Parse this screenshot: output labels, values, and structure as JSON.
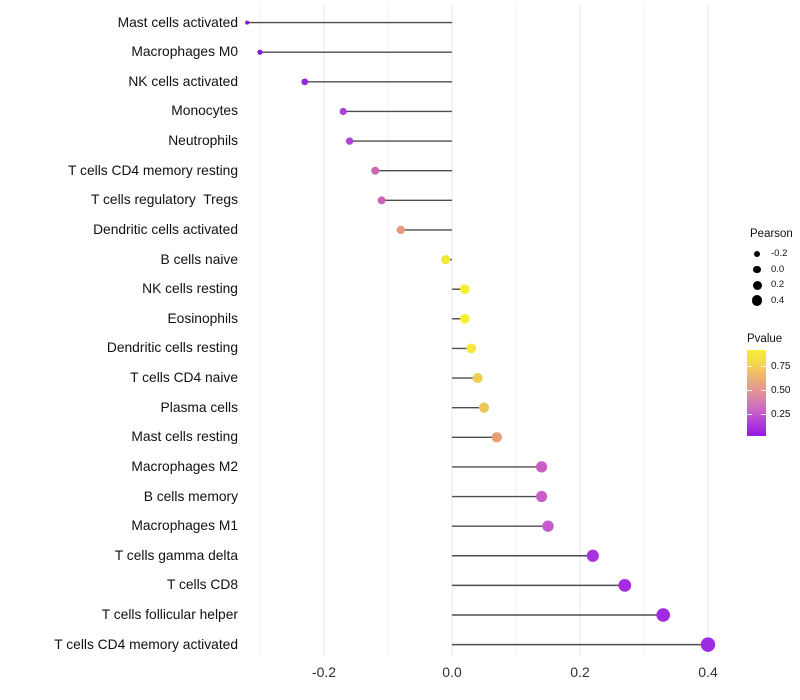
{
  "chart_data": {
    "type": "lollipop",
    "title": "",
    "xlabel": "",
    "ylabel": "",
    "xlim": [
      -0.345,
      0.44
    ],
    "x_ticks": [
      -0.2,
      0.0,
      0.2,
      0.4
    ],
    "x_tick_labels": [
      "-0.2",
      "0.0",
      "0.2",
      "0.4"
    ],
    "gridlines_x": [
      -0.3,
      -0.2,
      -0.1,
      0.0,
      0.1,
      0.2,
      0.3,
      0.4
    ],
    "grid": "vertical-only",
    "legend_position": "right",
    "rows": [
      {
        "label": "Mast cells activated",
        "pearson": -0.32,
        "pvalue_est": 0.02,
        "color": "#7E14D8",
        "radius": 2.0
      },
      {
        "label": "Macrophages M0",
        "pearson": -0.3,
        "pvalue_est": 0.04,
        "color": "#8819DB",
        "radius": 2.6
      },
      {
        "label": "NK cells activated",
        "pearson": -0.23,
        "pvalue_est": 0.07,
        "color": "#9329E0",
        "radius": 3.4
      },
      {
        "label": "Monocytes",
        "pearson": -0.17,
        "pvalue_est": 0.14,
        "color": "#AE41D5",
        "radius": 3.6
      },
      {
        "label": "Neutrophils",
        "pearson": -0.16,
        "pvalue_est": 0.15,
        "color": "#B044D3",
        "radius": 3.7
      },
      {
        "label": "T cells CD4 memory resting",
        "pearson": -0.12,
        "pvalue_est": 0.31,
        "color": "#CA68B5",
        "radius": 4.0
      },
      {
        "label": "T cells regulatory  Tregs",
        "pearson": -0.11,
        "pvalue_est": 0.3,
        "color": "#C966B8",
        "radius": 4.0
      },
      {
        "label": "Dendritic cells activated",
        "pearson": -0.08,
        "pvalue_est": 0.52,
        "color": "#E59A7C",
        "radius": 4.2
      },
      {
        "label": "B cells naive",
        "pearson": -0.01,
        "pvalue_est": 0.82,
        "color": "#F3E63B",
        "radius": 4.6
      },
      {
        "label": "NK cells resting",
        "pearson": 0.02,
        "pvalue_est": 0.88,
        "color": "#F8ED32",
        "radius": 4.8
      },
      {
        "label": "Eosinophils",
        "pearson": 0.02,
        "pvalue_est": 0.88,
        "color": "#F8ED32",
        "radius": 4.8
      },
      {
        "label": "Dendritic cells resting",
        "pearson": 0.03,
        "pvalue_est": 0.84,
        "color": "#F5E73C",
        "radius": 4.9
      },
      {
        "label": "T cells CD4 naive",
        "pearson": 0.04,
        "pvalue_est": 0.7,
        "color": "#EDCE54",
        "radius": 5.0
      },
      {
        "label": "Plasma cells",
        "pearson": 0.05,
        "pvalue_est": 0.66,
        "color": "#EBC75B",
        "radius": 5.1
      },
      {
        "label": "Mast cells resting",
        "pearson": 0.07,
        "pvalue_est": 0.55,
        "color": "#E4A075",
        "radius": 5.2
      },
      {
        "label": "Macrophages M2",
        "pearson": 0.14,
        "pvalue_est": 0.27,
        "color": "#C75FC5",
        "radius": 5.6
      },
      {
        "label": "B cells memory",
        "pearson": 0.14,
        "pvalue_est": 0.27,
        "color": "#C75FC7",
        "radius": 5.6
      },
      {
        "label": "Macrophages M1",
        "pearson": 0.15,
        "pvalue_est": 0.25,
        "color": "#C55BCB",
        "radius": 5.7
      },
      {
        "label": "T cells gamma delta",
        "pearson": 0.22,
        "pvalue_est": 0.12,
        "color": "#A832E2",
        "radius": 6.1
      },
      {
        "label": "T cells CD8",
        "pearson": 0.27,
        "pvalue_est": 0.1,
        "color": "#A42DE2",
        "radius": 6.4
      },
      {
        "label": "T cells follicular helper",
        "pearson": 0.33,
        "pvalue_est": 0.08,
        "color": "#A12AE1",
        "radius": 6.8
      },
      {
        "label": "T cells CD4 memory activated",
        "pearson": 0.4,
        "pvalue_est": 0.06,
        "color": "#9F2BE0",
        "radius": 7.2
      }
    ],
    "legend_size": {
      "title": "Pearson",
      "dot_color": "#000000",
      "entries": [
        {
          "label": "-0.2",
          "radius": 3.0
        },
        {
          "label": "0.0",
          "radius": 3.8
        },
        {
          "label": "0.2",
          "radius": 4.5
        },
        {
          "label": "0.4",
          "radius": 5.2
        }
      ]
    },
    "legend_color": {
      "title": "Pvalue",
      "tick_labels": [
        "0.75",
        "0.50",
        "0.25"
      ],
      "tick_values": [
        0.75,
        0.5,
        0.25
      ],
      "gradient_top_to_bottom": [
        "#F9ED35",
        "#F4D54E",
        "#ECAF74",
        "#E0909B",
        "#CE6EBE",
        "#B440D9",
        "#9717E6"
      ],
      "domain_top_to_bottom": [
        0.92,
        0.0
      ]
    },
    "style_colors": {
      "stem": "#4D4D4D",
      "grid_major": "#E7E7E7",
      "grid_minor": "#F1F1F1",
      "background": "#FFFFFF"
    }
  }
}
